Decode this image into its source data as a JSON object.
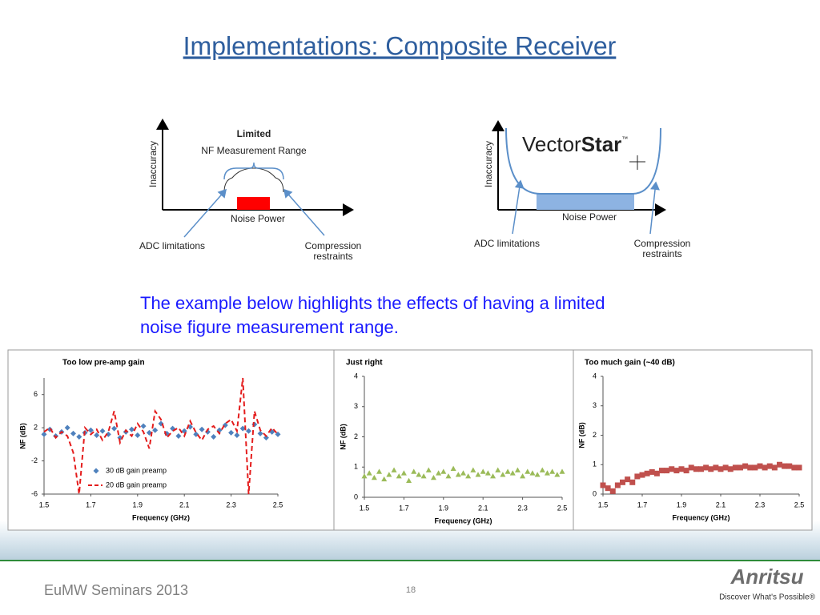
{
  "title": "Implementations: Composite Receiver",
  "diagrams": [
    {
      "heading": "Limited",
      "subheading": "NF Measurement Range",
      "y_axis": "Inaccuracy",
      "x_axis": "Noise Power",
      "left_note": "ADC limitations",
      "right_note": [
        "Compression",
        "restraints"
      ]
    },
    {
      "logo": [
        "Vector",
        "Star",
        "™"
      ],
      "y_axis": "Inaccuracy",
      "x_axis": "Noise Power",
      "left_note": "ADC limitations",
      "right_note": [
        "Compression",
        "restraints"
      ]
    }
  ],
  "body_text": [
    "The example below highlights the effects of having a limited",
    "noise figure measurement range."
  ],
  "chart_data": [
    {
      "type": "scatter",
      "title": "Too low pre-amp gain",
      "xlabel": "Frequency (GHz)",
      "ylabel": "NF (dB)",
      "x": [
        1.5,
        1.525,
        1.55,
        1.575,
        1.6,
        1.625,
        1.65,
        1.675,
        1.7,
        1.725,
        1.75,
        1.775,
        1.8,
        1.825,
        1.85,
        1.875,
        1.9,
        1.925,
        1.95,
        1.975,
        2,
        2.025,
        2.05,
        2.075,
        2.1,
        2.125,
        2.15,
        2.175,
        2.2,
        2.225,
        2.25,
        2.275,
        2.3,
        2.325,
        2.35,
        2.375,
        2.4,
        2.425,
        2.45,
        2.475,
        2.5
      ],
      "series": [
        {
          "name": "30 dB gain preamp",
          "color": "#4f81bd",
          "style": "markers",
          "marker": "diamond",
          "values": [
            1.2,
            1.8,
            1,
            1.5,
            2,
            1.3,
            0.9,
            1.4,
            1.7,
            1.1,
            1.6,
            1.2,
            1.9,
            0.8,
            1.5,
            1.8,
            1.1,
            2.2,
            1.4,
            1.7,
            2.5,
            1.3,
            1.9,
            1.0,
            1.6,
            2.1,
            1.2,
            1.8,
            1.5,
            0.9,
            1.7,
            2.3,
            1.4,
            1.1,
            1.9,
            1.6,
            2.4,
            1.3,
            0.8,
            1.5,
            1.2
          ]
        },
        {
          "name": "20 dB gain preamp",
          "color": "#e41c1c",
          "style": "dashed-line",
          "values": [
            1.5,
            2,
            0.8,
            1.5,
            1,
            -1,
            -6,
            2,
            1.2,
            1.8,
            0.5,
            1.5,
            4,
            0.2,
            1.7,
            1,
            2.5,
            1.5,
            -0.5,
            4,
            3,
            0.8,
            1.6,
            2,
            1,
            2.8,
            1.4,
            0.5,
            1.8,
            2.2,
            1.3,
            2.5,
            3,
            1.6,
            8,
            -6,
            4,
            1.7,
            1,
            2,
            1.2
          ]
        }
      ],
      "xlim": [
        1.5,
        2.5
      ],
      "xticks": [
        1.5,
        1.7,
        1.9,
        2.1,
        2.3,
        2.5
      ],
      "ylim": [
        -6,
        8
      ],
      "yticks": [
        -6,
        -2,
        2,
        6
      ],
      "legend": "lower left"
    },
    {
      "type": "scatter",
      "title": "Just right",
      "xlabel": "Frequency (GHz)",
      "ylabel": "NF (dB)",
      "x": [
        1.5,
        1.525,
        1.55,
        1.575,
        1.6,
        1.625,
        1.65,
        1.675,
        1.7,
        1.725,
        1.75,
        1.775,
        1.8,
        1.825,
        1.85,
        1.875,
        1.9,
        1.925,
        1.95,
        1.975,
        2,
        2.025,
        2.05,
        2.075,
        2.1,
        2.125,
        2.15,
        2.175,
        2.2,
        2.225,
        2.25,
        2.275,
        2.3,
        2.325,
        2.35,
        2.375,
        2.4,
        2.425,
        2.45,
        2.475,
        2.5
      ],
      "values": [
        0.7,
        0.8,
        0.65,
        0.85,
        0.6,
        0.75,
        0.9,
        0.7,
        0.8,
        0.55,
        0.85,
        0.75,
        0.7,
        0.9,
        0.65,
        0.8,
        0.85,
        0.7,
        0.95,
        0.75,
        0.8,
        0.7,
        0.9,
        0.75,
        0.85,
        0.8,
        0.7,
        0.9,
        0.75,
        0.85,
        0.8,
        0.9,
        0.7,
        0.85,
        0.8,
        0.75,
        0.9,
        0.8,
        0.85,
        0.75,
        0.85
      ],
      "color": "#9bbb59",
      "marker": "triangle",
      "xlim": [
        1.5,
        2.5
      ],
      "xticks": [
        1.5,
        1.7,
        1.9,
        2.1,
        2.3,
        2.5
      ],
      "ylim": [
        0,
        4
      ],
      "yticks": [
        0,
        1,
        2,
        3,
        4
      ]
    },
    {
      "type": "scatter",
      "title": "Too much gain (~40 dB)",
      "xlabel": "Frequency (GHz)",
      "ylabel": "NF (dB)",
      "x": [
        1.5,
        1.525,
        1.55,
        1.575,
        1.6,
        1.625,
        1.65,
        1.675,
        1.7,
        1.725,
        1.75,
        1.775,
        1.8,
        1.825,
        1.85,
        1.875,
        1.9,
        1.925,
        1.95,
        1.975,
        2,
        2.025,
        2.05,
        2.075,
        2.1,
        2.125,
        2.15,
        2.175,
        2.2,
        2.225,
        2.25,
        2.275,
        2.3,
        2.325,
        2.35,
        2.375,
        2.4,
        2.425,
        2.45,
        2.475,
        2.5
      ],
      "values": [
        0.3,
        0.2,
        0.1,
        0.3,
        0.4,
        0.5,
        0.4,
        0.6,
        0.65,
        0.7,
        0.75,
        0.7,
        0.8,
        0.8,
        0.85,
        0.8,
        0.85,
        0.8,
        0.9,
        0.85,
        0.85,
        0.9,
        0.85,
        0.9,
        0.85,
        0.9,
        0.85,
        0.9,
        0.9,
        0.95,
        0.9,
        0.9,
        0.95,
        0.9,
        0.95,
        0.9,
        1,
        0.95,
        0.95,
        0.9,
        0.9
      ],
      "color": "#c0504d",
      "marker": "square",
      "xlim": [
        1.5,
        2.5
      ],
      "xticks": [
        1.5,
        1.7,
        1.9,
        2.1,
        2.3,
        2.5
      ],
      "ylim": [
        0,
        4
      ],
      "yticks": [
        0,
        1,
        2,
        3,
        4
      ]
    }
  ],
  "footer": {
    "event": "EuMW Seminars 2013",
    "page": "18",
    "brand": "Anritsu",
    "tagline": "Discover What's Possible®"
  }
}
